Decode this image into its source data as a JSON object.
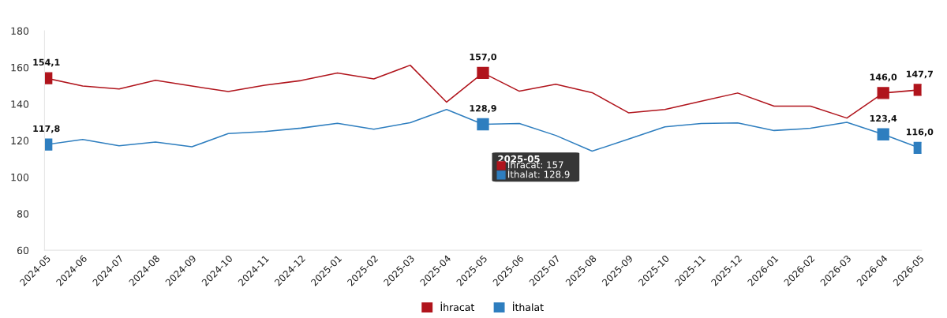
{
  "chart_data": {
    "type": "line",
    "categories": [
      "2024-05",
      "2024-06",
      "2024-07",
      "2024-08",
      "2024-09",
      "2024-10",
      "2024-11",
      "2024-12",
      "2025-01",
      "2025-02",
      "2025-03",
      "2025-04",
      "2025-05",
      "2025-06",
      "2025-07",
      "2025-08",
      "2025-09",
      "2025-10",
      "2025-11",
      "2025-12",
      "2026-01",
      "2026-02",
      "2026-03",
      "2026-04",
      "2026-05"
    ],
    "series": [
      {
        "name": "İhracat",
        "color": "#b0141c",
        "values": [
          154.1,
          149.8,
          148.2,
          153.0,
          149.8,
          146.8,
          150.3,
          152.8,
          157.0,
          153.7,
          161.2,
          141.0,
          157.0,
          147.0,
          150.8,
          146.2,
          135.2,
          137.0,
          141.5,
          146.0,
          138.8,
          138.8,
          132.3,
          146.0,
          147.7
        ],
        "value_labels": [
          "154,1",
          null,
          null,
          null,
          null,
          null,
          null,
          null,
          null,
          null,
          null,
          null,
          "157,0",
          null,
          null,
          null,
          null,
          null,
          null,
          null,
          null,
          null,
          null,
          "146,0",
          "147,7"
        ]
      },
      {
        "name": "İthalat",
        "color": "#2e7ebf",
        "values": [
          117.8,
          120.6,
          117.1,
          119.2,
          116.6,
          123.8,
          124.9,
          126.8,
          129.4,
          126.2,
          129.8,
          137.0,
          128.9,
          129.3,
          122.8,
          114.2,
          120.8,
          127.5,
          129.3,
          129.7,
          125.5,
          126.7,
          130.0,
          123.4,
          116.0
        ],
        "value_labels": [
          "117,8",
          null,
          null,
          null,
          null,
          null,
          null,
          null,
          null,
          null,
          null,
          null,
          "128,9",
          null,
          null,
          null,
          null,
          null,
          null,
          null,
          null,
          null,
          null,
          "123,4",
          "116,0"
        ]
      }
    ],
    "ylim": [
      60,
      180
    ],
    "yticks": [
      60,
      80,
      100,
      120,
      140,
      160,
      180
    ],
    "grid": false,
    "legend": "bottom",
    "line_style": "solid",
    "annotations": [
      "2025-05",
      "İhracat: 157",
      "İthalat: 128.9"
    ]
  }
}
